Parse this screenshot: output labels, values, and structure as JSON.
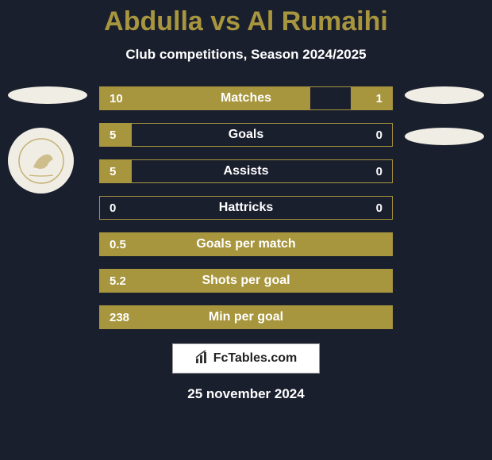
{
  "title": "Abdulla vs Al Rumaihi",
  "subtitle": "Club competitions, Season 2024/2025",
  "date": "25 november 2024",
  "footer": {
    "text": "FcTables.com"
  },
  "colors": {
    "background": "#1a1f2e",
    "accent": "#a8963e",
    "text": "#ffffff",
    "footer_bg": "#ffffff"
  },
  "stats": [
    {
      "label": "Matches",
      "left_value": "10",
      "right_value": "1",
      "left_bar_pct": 72,
      "right_bar_pct": 14
    },
    {
      "label": "Goals",
      "left_value": "5",
      "right_value": "0",
      "left_bar_pct": 11,
      "right_bar_pct": 0
    },
    {
      "label": "Assists",
      "left_value": "5",
      "right_value": "0",
      "left_bar_pct": 11,
      "right_bar_pct": 0
    },
    {
      "label": "Hattricks",
      "left_value": "0",
      "right_value": "0",
      "left_bar_pct": 0,
      "right_bar_pct": 0
    },
    {
      "label": "Goals per match",
      "left_value": "0.5",
      "right_value": "",
      "full_bar": true
    },
    {
      "label": "Shots per goal",
      "left_value": "5.2",
      "right_value": "",
      "full_bar": true
    },
    {
      "label": "Min per goal",
      "left_value": "238",
      "right_value": "",
      "full_bar": true
    }
  ]
}
